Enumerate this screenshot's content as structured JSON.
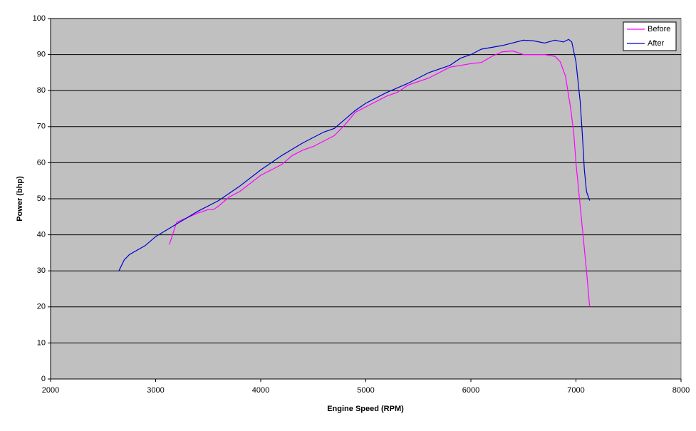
{
  "chart_data": {
    "type": "line",
    "xlabel": "Engine Speed (RPM)",
    "ylabel": "Power (bhp)",
    "xlim": [
      2000,
      8000
    ],
    "xticks": [
      2000,
      3000,
      4000,
      5000,
      6000,
      7000,
      8000
    ],
    "ylim": [
      0,
      100
    ],
    "yticks": [
      0,
      10,
      20,
      30,
      40,
      50,
      60,
      70,
      80,
      90,
      100
    ],
    "grid": true,
    "legend": "top-right",
    "series": [
      {
        "name": "Before",
        "color": "#ff00ff",
        "x": [
          3130,
          3200,
          3400,
          3500,
          3550,
          3600,
          3700,
          3800,
          4000,
          4200,
          4300,
          4400,
          4500,
          4600,
          4700,
          4800,
          4900,
          5000,
          5200,
          5300,
          5400,
          5600,
          5800,
          6000,
          6100,
          6200,
          6300,
          6400,
          6500,
          6700,
          6800,
          6850,
          6900,
          6950,
          6980,
          7000,
          7050,
          7100,
          7130
        ],
        "values": [
          37.3,
          43.5,
          46,
          47,
          47,
          48,
          50.5,
          52,
          56.5,
          59.5,
          62,
          63.5,
          64.5,
          66,
          67.5,
          70.5,
          74,
          75.5,
          78.5,
          79.5,
          81.5,
          83.5,
          86.5,
          87.5,
          87.8,
          89.5,
          90.8,
          91,
          90,
          90,
          89.5,
          88,
          84,
          75,
          68,
          60,
          45,
          30,
          20
        ]
      },
      {
        "name": "After",
        "color": "#0000cc",
        "x": [
          2650,
          2700,
          2750,
          2900,
          3000,
          3200,
          3400,
          3600,
          3800,
          4000,
          4200,
          4400,
          4600,
          4700,
          4800,
          4900,
          5000,
          5200,
          5400,
          5600,
          5800,
          5900,
          6000,
          6100,
          6300,
          6500,
          6600,
          6700,
          6800,
          6880,
          6930,
          6960,
          7000,
          7040,
          7060,
          7080,
          7100,
          7130
        ],
        "values": [
          30,
          33,
          34.5,
          37,
          39.5,
          43,
          46.5,
          49.5,
          53.5,
          58,
          62,
          65.5,
          68.5,
          69.5,
          72,
          74.5,
          76.5,
          79.5,
          82,
          85,
          87,
          89,
          90,
          91.5,
          92.5,
          94,
          93.8,
          93.2,
          94,
          93.5,
          94.2,
          93.5,
          88,
          77,
          68,
          58,
          52,
          49.5
        ]
      }
    ]
  }
}
